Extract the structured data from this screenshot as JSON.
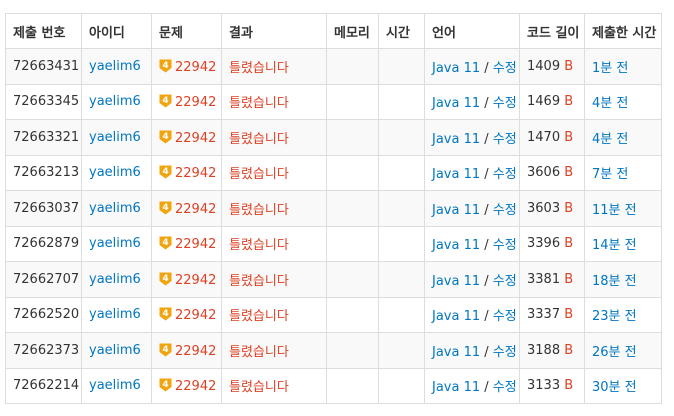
{
  "headers": {
    "id": "제출 번호",
    "user": "아이디",
    "problem": "문제",
    "result": "결과",
    "memory": "메모리",
    "time": "시간",
    "language": "언어",
    "length": "코드 길이",
    "submitted": "제출한 시간"
  },
  "colors": {
    "link": "#0076c0",
    "wrong": "#dd4124",
    "badge": "#f0a50e"
  },
  "rows": [
    {
      "id": "72663431",
      "user": "yaelim6",
      "badge": "4",
      "problem": "22942",
      "result": "틀렸습니다",
      "memory": "",
      "time": "",
      "lang": "Java 11",
      "edit": "수정",
      "length": "1409",
      "unit": "B",
      "submitted": "1분 전"
    },
    {
      "id": "72663345",
      "user": "yaelim6",
      "badge": "4",
      "problem": "22942",
      "result": "틀렸습니다",
      "memory": "",
      "time": "",
      "lang": "Java 11",
      "edit": "수정",
      "length": "1469",
      "unit": "B",
      "submitted": "4분 전"
    },
    {
      "id": "72663321",
      "user": "yaelim6",
      "badge": "4",
      "problem": "22942",
      "result": "틀렸습니다",
      "memory": "",
      "time": "",
      "lang": "Java 11",
      "edit": "수정",
      "length": "1470",
      "unit": "B",
      "submitted": "4분 전"
    },
    {
      "id": "72663213",
      "user": "yaelim6",
      "badge": "4",
      "problem": "22942",
      "result": "틀렸습니다",
      "memory": "",
      "time": "",
      "lang": "Java 11",
      "edit": "수정",
      "length": "3606",
      "unit": "B",
      "submitted": "7분 전"
    },
    {
      "id": "72663037",
      "user": "yaelim6",
      "badge": "4",
      "problem": "22942",
      "result": "틀렸습니다",
      "memory": "",
      "time": "",
      "lang": "Java 11",
      "edit": "수정",
      "length": "3603",
      "unit": "B",
      "submitted": "11분 전"
    },
    {
      "id": "72662879",
      "user": "yaelim6",
      "badge": "4",
      "problem": "22942",
      "result": "틀렸습니다",
      "memory": "",
      "time": "",
      "lang": "Java 11",
      "edit": "수정",
      "length": "3396",
      "unit": "B",
      "submitted": "14분 전"
    },
    {
      "id": "72662707",
      "user": "yaelim6",
      "badge": "4",
      "problem": "22942",
      "result": "틀렸습니다",
      "memory": "",
      "time": "",
      "lang": "Java 11",
      "edit": "수정",
      "length": "3381",
      "unit": "B",
      "submitted": "18분 전"
    },
    {
      "id": "72662520",
      "user": "yaelim6",
      "badge": "4",
      "problem": "22942",
      "result": "틀렸습니다",
      "memory": "",
      "time": "",
      "lang": "Java 11",
      "edit": "수정",
      "length": "3337",
      "unit": "B",
      "submitted": "23분 전"
    },
    {
      "id": "72662373",
      "user": "yaelim6",
      "badge": "4",
      "problem": "22942",
      "result": "틀렸습니다",
      "memory": "",
      "time": "",
      "lang": "Java 11",
      "edit": "수정",
      "length": "3188",
      "unit": "B",
      "submitted": "26분 전"
    },
    {
      "id": "72662214",
      "user": "yaelim6",
      "badge": "4",
      "problem": "22942",
      "result": "틀렸습니다",
      "memory": "",
      "time": "",
      "lang": "Java 11",
      "edit": "수정",
      "length": "3133",
      "unit": "B",
      "submitted": "30분 전"
    }
  ]
}
